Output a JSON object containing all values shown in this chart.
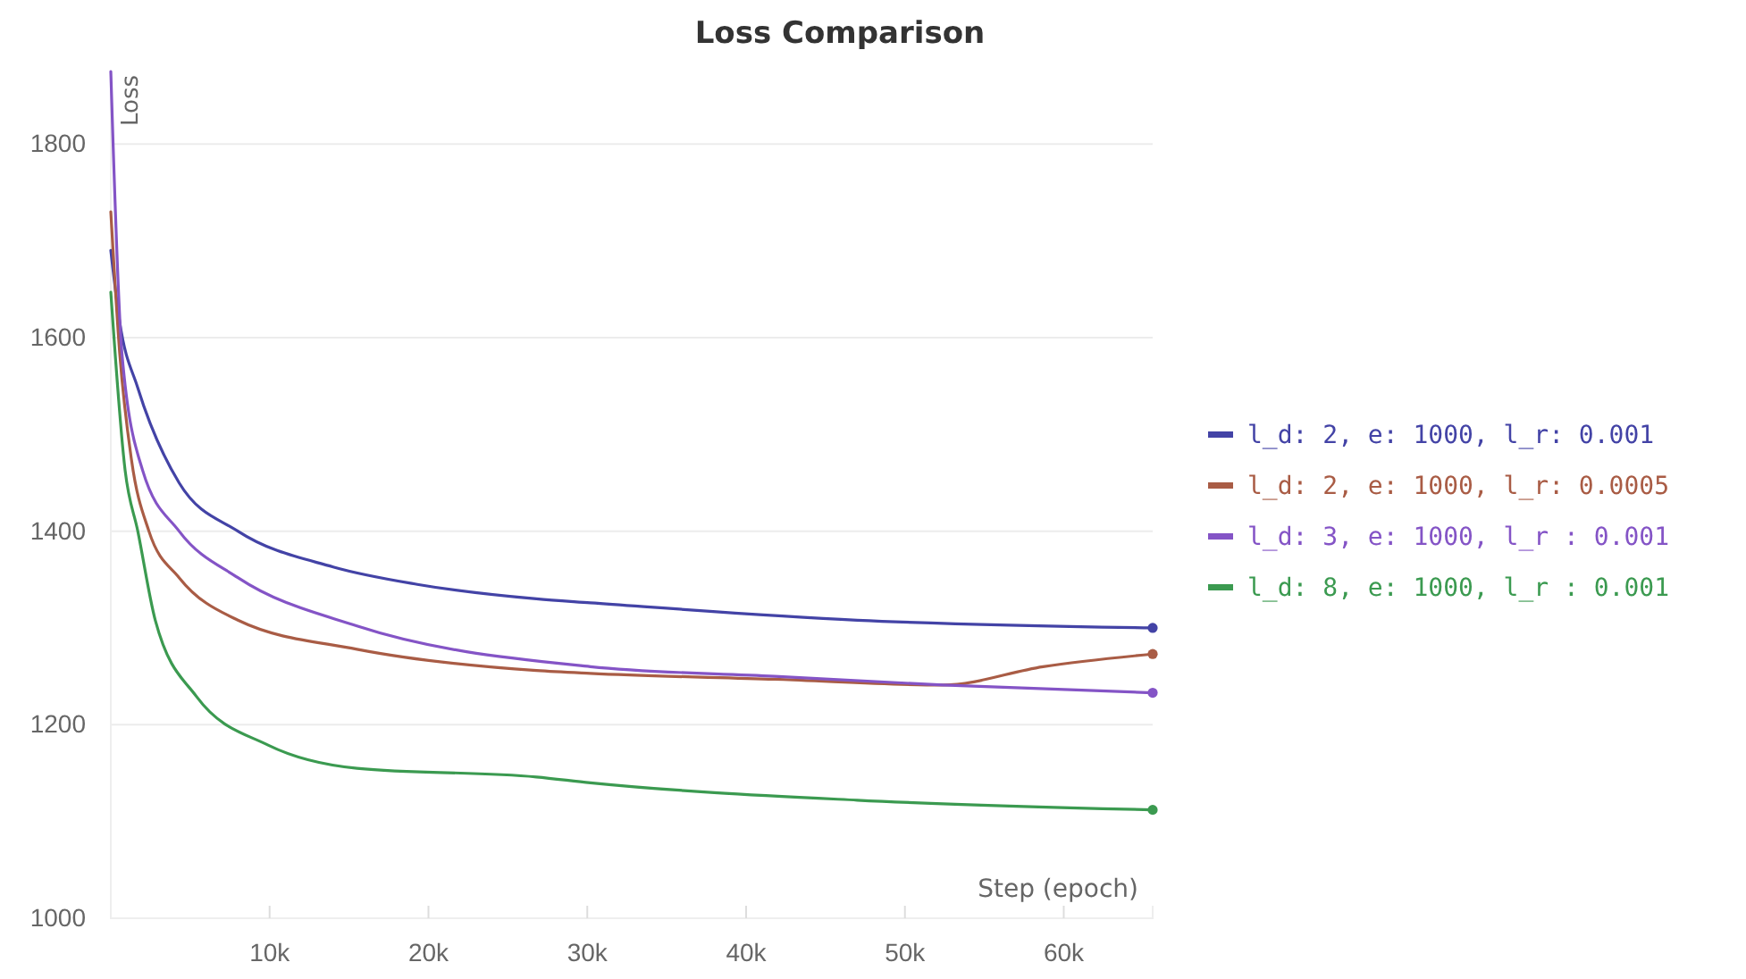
{
  "chart_data": {
    "type": "line",
    "title": "Loss Comparison",
    "xlabel": "Step (epoch)",
    "ylabel": "Loss",
    "xlim": [
      0,
      65600
    ],
    "ylim": [
      1000,
      1875
    ],
    "xticks": [
      {
        "value": 10000,
        "label": "10k"
      },
      {
        "value": 20000,
        "label": "20k"
      },
      {
        "value": 30000,
        "label": "30k"
      },
      {
        "value": 40000,
        "label": "40k"
      },
      {
        "value": 50000,
        "label": "50k"
      },
      {
        "value": 60000,
        "label": "60k"
      }
    ],
    "yticks": [
      1000,
      1200,
      1400,
      1600,
      1800
    ],
    "grid": "y",
    "legend": "right",
    "line_style": "solid",
    "series": [
      {
        "name": "l_d: 2, e: 1000, l_r: 0.001",
        "color": "#4343a6",
        "x": [
          0,
          560,
          1700,
          4300,
          8000,
          14000,
          19300,
          26800,
          30200,
          47000,
          65600
        ],
        "values": [
          1690,
          1616,
          1548,
          1450,
          1400,
          1363,
          1345,
          1330,
          1326,
          1308,
          1300
        ]
      },
      {
        "name": "l_d: 2, e: 1000, l_r: 0.0005",
        "color": "#a95c45",
        "x": [
          0,
          560,
          1300,
          2400,
          4300,
          8000,
          15500,
          26800,
          30200,
          41800,
          52400,
          58700,
          65600
        ],
        "values": [
          1730,
          1584,
          1474,
          1400,
          1352,
          1308,
          1278,
          1256,
          1253,
          1247,
          1241,
          1260,
          1273
        ]
      },
      {
        "name": "l_d: 3, e: 1000, l_r : 0.001",
        "color": "#8454c6",
        "x": [
          0,
          700,
          2000,
          4300,
          8000,
          15500,
          30200,
          41800,
          52400,
          65600
        ],
        "values": [
          1875,
          1584,
          1463,
          1400,
          1352,
          1302,
          1260,
          1250,
          1241,
          1233
        ]
      },
      {
        "name": "l_d: 8, e: 1000, l_r : 0.001",
        "color": "#3b9a50",
        "x": [
          0,
          900,
          1700,
          2800,
          5400,
          9900,
          15500,
          26800,
          30200,
          47000,
          65600
        ],
        "values": [
          1647,
          1463,
          1400,
          1308,
          1229,
          1179,
          1155,
          1146,
          1140,
          1122,
          1112
        ]
      }
    ]
  }
}
